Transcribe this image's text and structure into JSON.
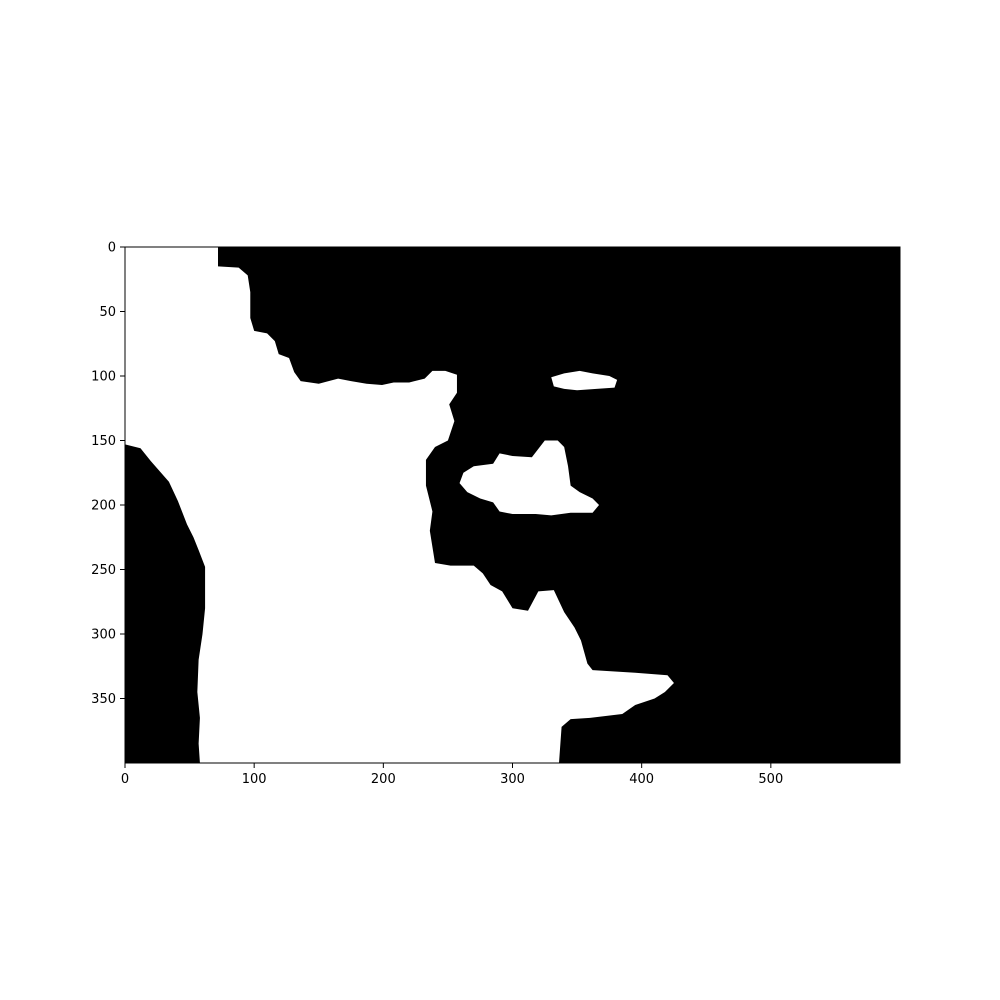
{
  "chart_data": {
    "type": "heatmap",
    "subtype": "binary-mask-image",
    "title": "",
    "xlabel": "",
    "ylabel": "",
    "image_width": 600,
    "image_height": 400,
    "xlim": [
      0,
      600
    ],
    "ylim": [
      400,
      0
    ],
    "y_axis_inverted": true,
    "grid": false,
    "legend": "none",
    "colormap": {
      "0": "#000000",
      "1": "#ffffff"
    },
    "x_ticks": [
      0,
      100,
      200,
      300,
      400,
      500
    ],
    "x_tick_labels": [
      "0",
      "100",
      "200",
      "300",
      "400",
      "500"
    ],
    "y_ticks": [
      0,
      50,
      100,
      150,
      200,
      250,
      300,
      350
    ],
    "y_tick_labels": [
      "0",
      "50",
      "100",
      "150",
      "200",
      "250",
      "300",
      "350"
    ],
    "regions": [
      {
        "value": 1,
        "name": "main-white-region",
        "points": [
          [
            0,
            0
          ],
          [
            72,
            0
          ],
          [
            72,
            15
          ],
          [
            88,
            16
          ],
          [
            95,
            22
          ],
          [
            97,
            35
          ],
          [
            97,
            55
          ],
          [
            100,
            65
          ],
          [
            110,
            67
          ],
          [
            116,
            73
          ],
          [
            119,
            83
          ],
          [
            127,
            86
          ],
          [
            131,
            97
          ],
          [
            136,
            104
          ],
          [
            150,
            106
          ],
          [
            165,
            102
          ],
          [
            175,
            104
          ],
          [
            187,
            106
          ],
          [
            199,
            107
          ],
          [
            208,
            105
          ],
          [
            220,
            105
          ],
          [
            232,
            102
          ],
          [
            238,
            96
          ],
          [
            248,
            96
          ],
          [
            257,
            99
          ],
          [
            257,
            113
          ],
          [
            251,
            122
          ],
          [
            255,
            135
          ],
          [
            250,
            150
          ],
          [
            240,
            155
          ],
          [
            233,
            165
          ],
          [
            233,
            185
          ],
          [
            238,
            205
          ],
          [
            236,
            220
          ],
          [
            240,
            245
          ],
          [
            252,
            247
          ],
          [
            270,
            247
          ],
          [
            277,
            253
          ],
          [
            283,
            262
          ],
          [
            292,
            267
          ],
          [
            300,
            280
          ],
          [
            312,
            282
          ],
          [
            320,
            267
          ],
          [
            332,
            266
          ],
          [
            340,
            283
          ],
          [
            348,
            295
          ],
          [
            353,
            305
          ],
          [
            358,
            323
          ],
          [
            362,
            328
          ],
          [
            395,
            330
          ],
          [
            420,
            332
          ],
          [
            425,
            338
          ],
          [
            418,
            345
          ],
          [
            410,
            350
          ],
          [
            395,
            355
          ],
          [
            385,
            362
          ],
          [
            360,
            365
          ],
          [
            345,
            366
          ],
          [
            338,
            372
          ],
          [
            336,
            400
          ],
          [
            58,
            400
          ],
          [
            57,
            385
          ],
          [
            58,
            365
          ],
          [
            56,
            345
          ],
          [
            57,
            320
          ],
          [
            60,
            300
          ],
          [
            62,
            280
          ],
          [
            62,
            248
          ],
          [
            57,
            235
          ],
          [
            53,
            225
          ],
          [
            48,
            215
          ],
          [
            41,
            197
          ],
          [
            34,
            182
          ],
          [
            20,
            166
          ],
          [
            12,
            156
          ],
          [
            0,
            153
          ]
        ]
      },
      {
        "value": 1,
        "name": "upper-right-blob",
        "points": [
          [
            330,
            101
          ],
          [
            340,
            98
          ],
          [
            352,
            96
          ],
          [
            362,
            98
          ],
          [
            375,
            100
          ],
          [
            381,
            103
          ],
          [
            379,
            109
          ],
          [
            365,
            110
          ],
          [
            350,
            111
          ],
          [
            340,
            110
          ],
          [
            332,
            108
          ]
        ]
      },
      {
        "value": 1,
        "name": "middle-blob",
        "points": [
          [
            262,
            175
          ],
          [
            270,
            170
          ],
          [
            285,
            168
          ],
          [
            290,
            160
          ],
          [
            300,
            162
          ],
          [
            315,
            163
          ],
          [
            325,
            150
          ],
          [
            335,
            150
          ],
          [
            340,
            155
          ],
          [
            343,
            170
          ],
          [
            345,
            185
          ],
          [
            352,
            190
          ],
          [
            362,
            195
          ],
          [
            367,
            200
          ],
          [
            362,
            206
          ],
          [
            345,
            206
          ],
          [
            330,
            208
          ],
          [
            318,
            207
          ],
          [
            300,
            207
          ],
          [
            290,
            205
          ],
          [
            285,
            198
          ],
          [
            275,
            195
          ],
          [
            265,
            190
          ],
          [
            259,
            183
          ]
        ]
      }
    ]
  }
}
